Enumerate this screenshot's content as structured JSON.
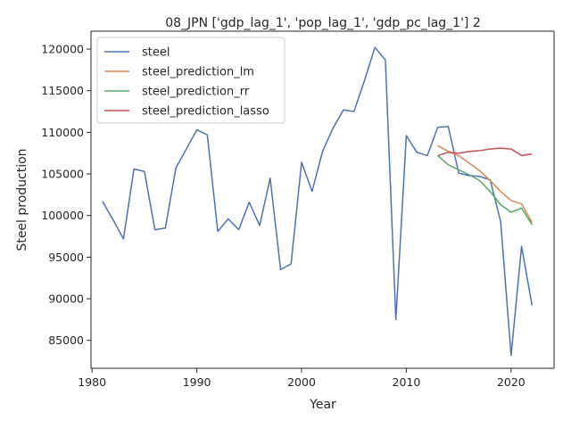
{
  "chart_data": {
    "type": "line",
    "title": "08_JPN ['gdp_lag_1', 'pop_lag_1', 'gdp_pc_lag_1'] 2",
    "xlabel": "Year",
    "ylabel": "Steel production",
    "xlim": [
      1979.9,
      2024.1
    ],
    "ylim": [
      81650,
      122150
    ],
    "xticks": [
      1980,
      1990,
      2000,
      2010,
      2020
    ],
    "yticks": [
      85000,
      90000,
      95000,
      100000,
      105000,
      110000,
      115000,
      120000
    ],
    "grid": false,
    "legend_position": "upper-left",
    "series": [
      {
        "name": "steel",
        "color": "#4c72b0",
        "x": [
          1981,
          1982,
          1983,
          1984,
          1985,
          1986,
          1987,
          1988,
          1989,
          1990,
          1991,
          1992,
          1993,
          1994,
          1995,
          1996,
          1997,
          1998,
          1999,
          2000,
          2001,
          2002,
          2003,
          2004,
          2005,
          2006,
          2007,
          2008,
          2009,
          2010,
          2011,
          2012,
          2013,
          2014,
          2015,
          2016,
          2017,
          2018,
          2019,
          2020,
          2021,
          2022
        ],
        "values": [
          101700,
          99500,
          97200,
          105600,
          105300,
          98300,
          98500,
          105700,
          108000,
          110300,
          109700,
          98100,
          99600,
          98300,
          101600,
          98800,
          104500,
          93500,
          94200,
          106400,
          102900,
          107700,
          110500,
          112700,
          112500,
          116200,
          120200,
          118700,
          87500,
          109600,
          107600,
          107200,
          110600,
          110700,
          105100,
          104800,
          104700,
          104300,
          99300,
          83200,
          96300,
          89200
        ]
      },
      {
        "name": "steel_prediction_lm",
        "color": "#dd8452",
        "x": [
          2013,
          2014,
          2015,
          2016,
          2017,
          2018,
          2019,
          2020,
          2021,
          2022
        ],
        "values": [
          108400,
          107700,
          107200,
          106300,
          105400,
          104200,
          102900,
          101800,
          101400,
          99200
        ]
      },
      {
        "name": "steel_prediction_rr",
        "color": "#55a868",
        "x": [
          2013,
          2014,
          2015,
          2016,
          2017,
          2018,
          2019,
          2020,
          2021,
          2022
        ],
        "values": [
          107200,
          106100,
          105500,
          104900,
          104200,
          102900,
          101300,
          100400,
          100900,
          98900
        ]
      },
      {
        "name": "steel_prediction_lasso",
        "color": "#c44e52",
        "x": [
          2013,
          2014,
          2015,
          2016,
          2017,
          2018,
          2019,
          2020,
          2021,
          2022
        ],
        "values": [
          107200,
          107600,
          107500,
          107700,
          107800,
          108000,
          108100,
          108000,
          107200,
          107400
        ]
      }
    ]
  }
}
